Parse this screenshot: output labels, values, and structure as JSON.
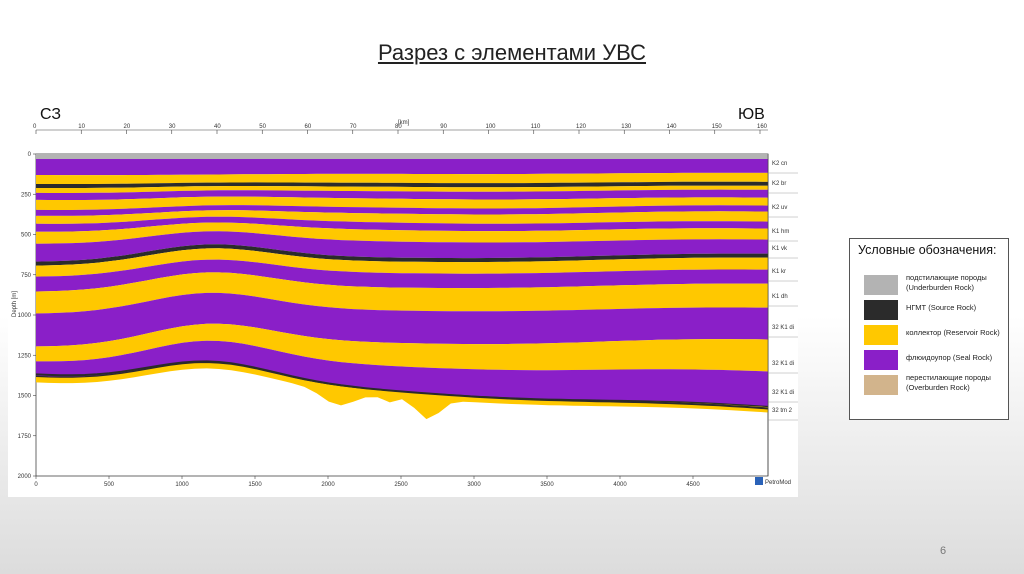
{
  "slide": {
    "title": "Разрез с элементами УВС",
    "page_number": "6"
  },
  "section": {
    "left_label": "СЗ",
    "right_label": "ЮВ",
    "top_axis_unit": "[km]",
    "top_ticks": [
      "0",
      "10",
      "20",
      "30",
      "40",
      "50",
      "60",
      "70",
      "80",
      "90",
      "100",
      "110",
      "120",
      "130",
      "140",
      "150",
      "160"
    ],
    "left_axis_title": "Depth [m]",
    "left_ticks": [
      "0",
      "250",
      "500",
      "750",
      "1000",
      "1250",
      "1500",
      "1750",
      "2000"
    ],
    "bottom_ticks": [
      "0",
      "500",
      "1000",
      "1500",
      "2000",
      "2500",
      "3000",
      "3500",
      "4000",
      "4500"
    ],
    "formations": [
      "K2 cn",
      "K2 br",
      "K2 uv",
      "K1 hm",
      "K1 vk",
      "K1 kr",
      "K1 dh",
      "32 K1 di",
      "32 K1 di",
      "32 K1 di",
      "32 tm 2"
    ],
    "logo_text": "PetroMod",
    "colors": {
      "underburden": "#b3b3b3",
      "source": "#2b2b2b",
      "reservoir": "#ffc800",
      "seal": "#8a1fc8",
      "overburden": "#d2b48c"
    }
  },
  "legend": {
    "title": "Условные обозначения:",
    "items": [
      {
        "label": "подстилающие породы (Underburden Rock)",
        "color": "#b3b3b3"
      },
      {
        "label": "НГМТ (Source Rock)",
        "color": "#2b2b2b"
      },
      {
        "label": "коллектор (Reservoir Rock)",
        "color": "#ffc800"
      },
      {
        "label": "флюидоупор (Seal Rock)",
        "color": "#8a1fc8"
      },
      {
        "label": "перестилающие породы (Overburden Rock)",
        "color": "#d2b48c"
      }
    ]
  }
}
